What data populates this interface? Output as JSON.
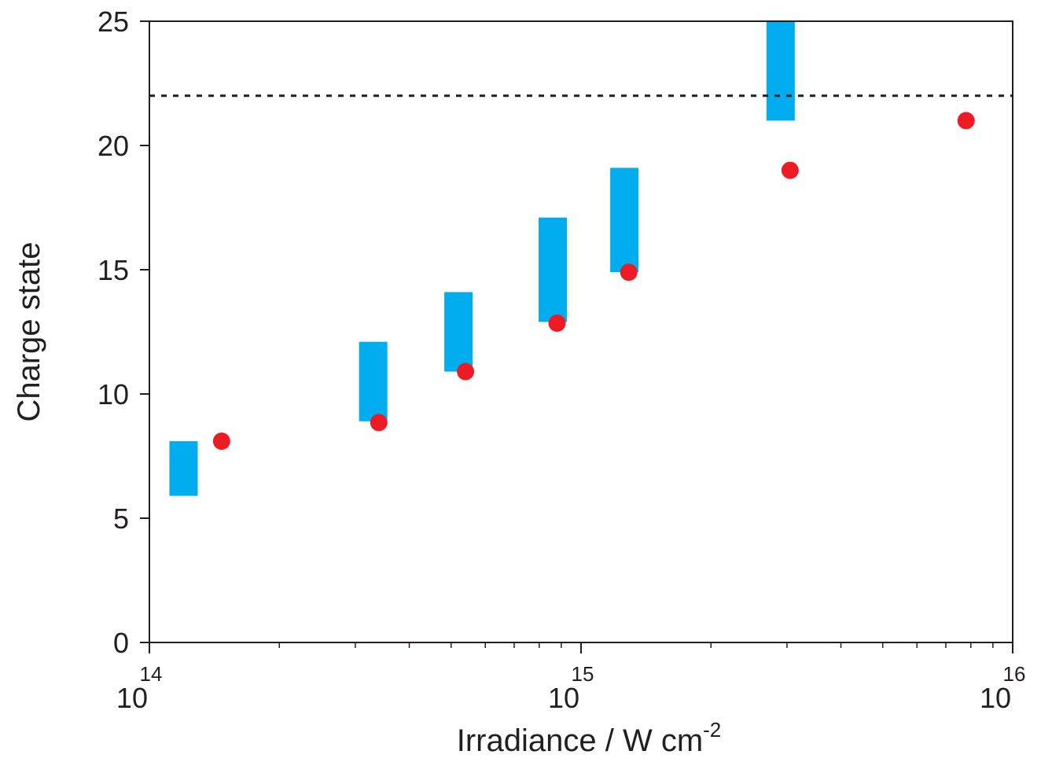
{
  "chart_data": {
    "type": "scatter",
    "title": "",
    "xlabel": "Irradiance / W cm",
    "xlabel_superscript": "-2",
    "ylabel": "Charge state",
    "xscale": "log",
    "xlim": [
      100000000000000.0,
      1e+16
    ],
    "ylim": [
      0,
      25
    ],
    "grid": false,
    "x_ticks": [
      {
        "value": 100000000000000.0,
        "base": "10",
        "exp": "14"
      },
      {
        "value": 1000000000000000.0,
        "base": "10",
        "exp": "15"
      },
      {
        "value": 1e+16,
        "base": "10",
        "exp": "16"
      }
    ],
    "y_ticks": [
      {
        "value": 0,
        "label": "0"
      },
      {
        "value": 5,
        "label": "5"
      },
      {
        "value": 10,
        "label": "10"
      },
      {
        "value": 15,
        "label": "15"
      },
      {
        "value": 20,
        "label": "20"
      },
      {
        "value": 25,
        "label": "25"
      }
    ],
    "series": [
      {
        "marker": "bar-range",
        "color": "#00aeef",
        "x": [
          120000000000000.0,
          330000000000000.0,
          520000000000000.0,
          860000000000000.0,
          1260000000000000.0,
          2900000000000000.0
        ],
        "low": [
          5.9,
          8.9,
          10.9,
          12.9,
          14.9,
          21.0
        ],
        "high": [
          8.1,
          12.1,
          14.1,
          17.1,
          19.1,
          25.0
        ]
      },
      {
        "marker": "circle",
        "color": "#ed1c24",
        "x": [
          147000000000000.0,
          340000000000000.0,
          540000000000000.0,
          880000000000000.0,
          1290000000000000.0,
          3050000000000000.0,
          7800000000000000.0
        ],
        "y": [
          8.1,
          8.85,
          10.9,
          12.85,
          14.9,
          19.0,
          21.0
        ]
      }
    ],
    "reference_line": {
      "y": 22,
      "style": "dotted",
      "color": "#231f20"
    }
  }
}
